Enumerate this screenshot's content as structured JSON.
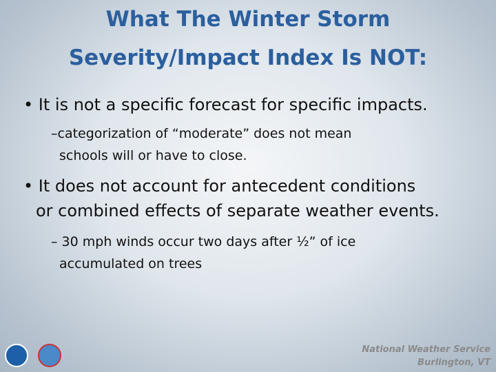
{
  "title": [
    "What The Winter Storm",
    "Severity/Impact Index Is NOT:"
  ],
  "bullets": [
    {
      "text": "It is not a specific forecast for specific impacts.",
      "sub": [
        "–categorization of “moderate” does not mean",
        "schools will or have to close."
      ]
    },
    {
      "text": [
        "It does not account for antecedent conditions",
        "or combined effects of separate weather events."
      ],
      "sub": [
        "– 30 mph winds occur two days after ½” of ice",
        "accumulated on trees"
      ]
    }
  ],
  "footer": [
    "National Weather Service",
    "Burlington, VT"
  ]
}
